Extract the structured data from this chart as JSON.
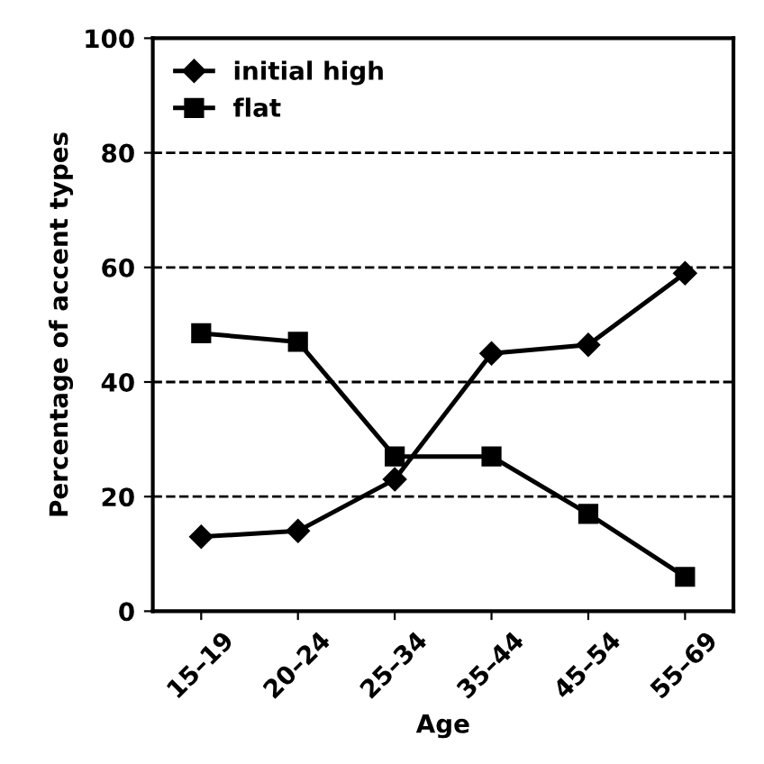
{
  "chart_data": {
    "type": "line",
    "xlabel": "Age",
    "ylabel": "Percentage of accent types",
    "categories": [
      "15–19",
      "20–24",
      "25–34",
      "35–44",
      "45–54",
      "55–69"
    ],
    "series": [
      {
        "name": "initial high",
        "color": "#000000",
        "marker": "diamond",
        "values": [
          13,
          14,
          23,
          45,
          46.5,
          59
        ]
      },
      {
        "name": "flat",
        "color": "#000000",
        "marker": "square",
        "values": [
          48.5,
          47,
          27,
          27,
          17,
          6
        ]
      }
    ],
    "ylim": [
      0,
      100
    ],
    "yticks": [
      0,
      20,
      40,
      60,
      80,
      100
    ],
    "grid": "y",
    "legend": "top left",
    "line_style": "solid"
  }
}
